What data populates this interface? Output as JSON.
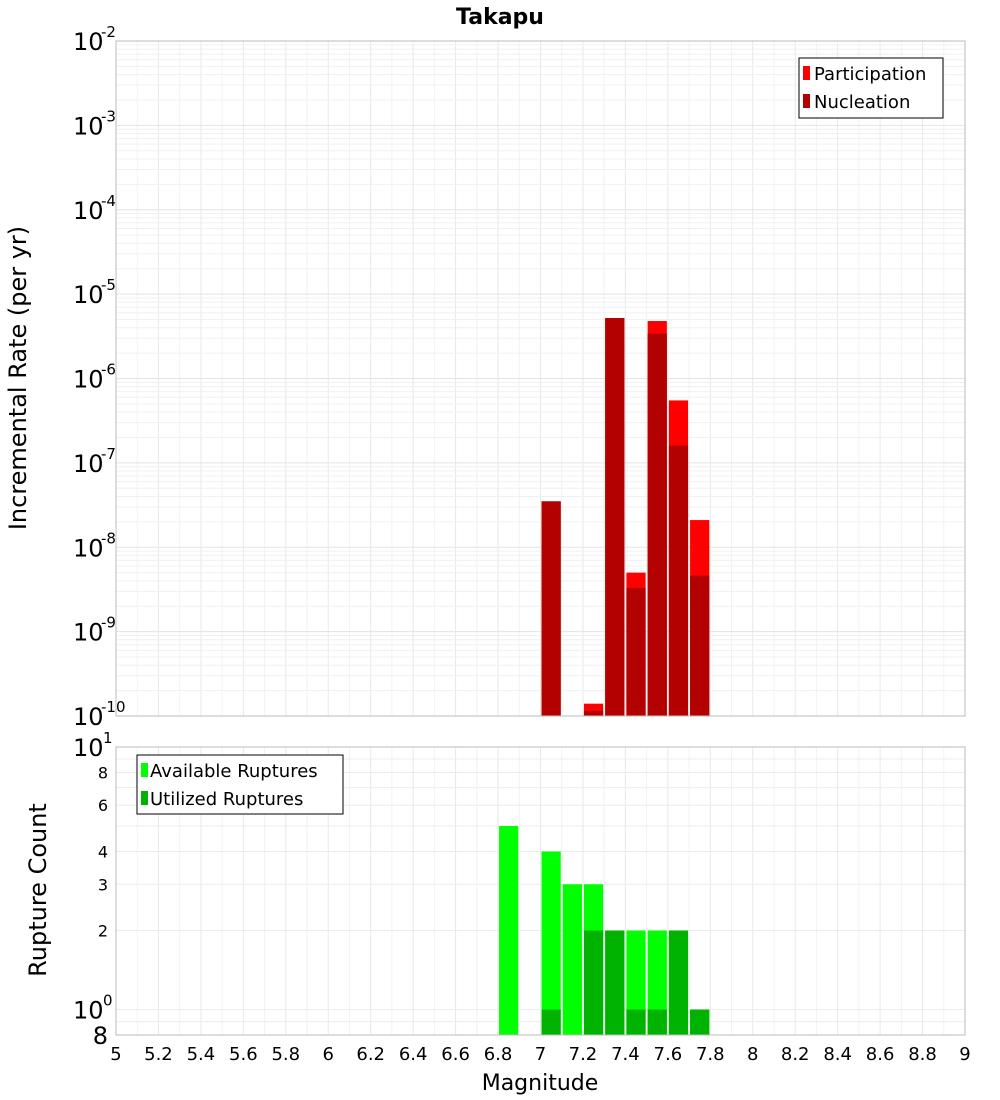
{
  "chart_data": [
    {
      "type": "bar",
      "title": "Takapu",
      "xlabel": "",
      "ylabel": "Incremental Rate (per yr)",
      "y_scale": "log",
      "xlim": [
        5,
        9
      ],
      "ylim": [
        1e-10,
        0.01
      ],
      "bin_width": 0.1,
      "grid": true,
      "legend_position": "top-right",
      "y_ticks": [
        {
          "base": "10",
          "exp": "-10",
          "value": 1e-10
        },
        {
          "base": "10",
          "exp": "-9",
          "value": 1e-09
        },
        {
          "base": "10",
          "exp": "-8",
          "value": 1e-08
        },
        {
          "base": "10",
          "exp": "-7",
          "value": 1e-07
        },
        {
          "base": "10",
          "exp": "-6",
          "value": 1e-06
        },
        {
          "base": "10",
          "exp": "-5",
          "value": 1e-05
        },
        {
          "base": "10",
          "exp": "-4",
          "value": 0.0001
        },
        {
          "base": "10",
          "exp": "-3",
          "value": 0.001
        },
        {
          "base": "10",
          "exp": "-2",
          "value": 0.01
        }
      ],
      "series": [
        {
          "name": "Participation",
          "color": "#ff0000",
          "points": [
            {
              "x": 7.05,
              "y": 3.5e-08
            },
            {
              "x": 7.25,
              "y": 1.4e-10
            },
            {
              "x": 7.35,
              "y": 5.2e-06
            },
            {
              "x": 7.45,
              "y": 5e-09
            },
            {
              "x": 7.55,
              "y": 4.8e-06
            },
            {
              "x": 7.65,
              "y": 5.5e-07
            },
            {
              "x": 7.75,
              "y": 2.1e-08
            }
          ]
        },
        {
          "name": "Nucleation",
          "color": "#b30000",
          "points": [
            {
              "x": 7.05,
              "y": 3.5e-08
            },
            {
              "x": 7.25,
              "y": 1.15e-10
            },
            {
              "x": 7.35,
              "y": 5.2e-06
            },
            {
              "x": 7.45,
              "y": 3.3e-09
            },
            {
              "x": 7.55,
              "y": 3.4e-06
            },
            {
              "x": 7.65,
              "y": 1.6e-07
            },
            {
              "x": 7.75,
              "y": 4.6e-09
            }
          ]
        }
      ]
    },
    {
      "type": "bar",
      "title": "",
      "xlabel": "Magnitude",
      "ylabel": "Rupture Count",
      "y_scale": "log",
      "xlim": [
        5,
        9
      ],
      "ylim": [
        0.8,
        10
      ],
      "bin_width": 0.1,
      "grid": true,
      "legend_position": "top-left",
      "x_ticks": [
        "5",
        "5.2",
        "5.4",
        "5.6",
        "5.8",
        "6",
        "6.2",
        "6.4",
        "6.6",
        "6.8",
        "7",
        "7.2",
        "7.4",
        "7.6",
        "7.8",
        "8",
        "8.2",
        "8.4",
        "8.6",
        "8.8",
        "9"
      ],
      "y_major_ticks": [
        {
          "base": "10",
          "exp": "0",
          "value": 1
        },
        {
          "base": "10",
          "exp": "1",
          "value": 10
        }
      ],
      "y_minor_ticks": [
        {
          "label": "8",
          "value": 0.8
        },
        {
          "label": "2",
          "value": 2
        },
        {
          "label": "3",
          "value": 3
        },
        {
          "label": "4",
          "value": 4
        },
        {
          "label": "6",
          "value": 6
        },
        {
          "label": "8",
          "value": 8
        }
      ],
      "series": [
        {
          "name": "Available Ruptures",
          "color": "#00ff00",
          "points": [
            {
              "x": 6.85,
              "y": 5
            },
            {
              "x": 7.05,
              "y": 4
            },
            {
              "x": 7.15,
              "y": 3
            },
            {
              "x": 7.25,
              "y": 3
            },
            {
              "x": 7.35,
              "y": 2
            },
            {
              "x": 7.45,
              "y": 2
            },
            {
              "x": 7.55,
              "y": 2
            },
            {
              "x": 7.65,
              "y": 2
            },
            {
              "x": 7.75,
              "y": 1
            }
          ]
        },
        {
          "name": "Utilized Ruptures",
          "color": "#00b300",
          "points": [
            {
              "x": 7.05,
              "y": 1
            },
            {
              "x": 7.25,
              "y": 2
            },
            {
              "x": 7.35,
              "y": 2
            },
            {
              "x": 7.45,
              "y": 1
            },
            {
              "x": 7.55,
              "y": 1
            },
            {
              "x": 7.65,
              "y": 2
            },
            {
              "x": 7.75,
              "y": 1
            }
          ]
        }
      ]
    }
  ]
}
